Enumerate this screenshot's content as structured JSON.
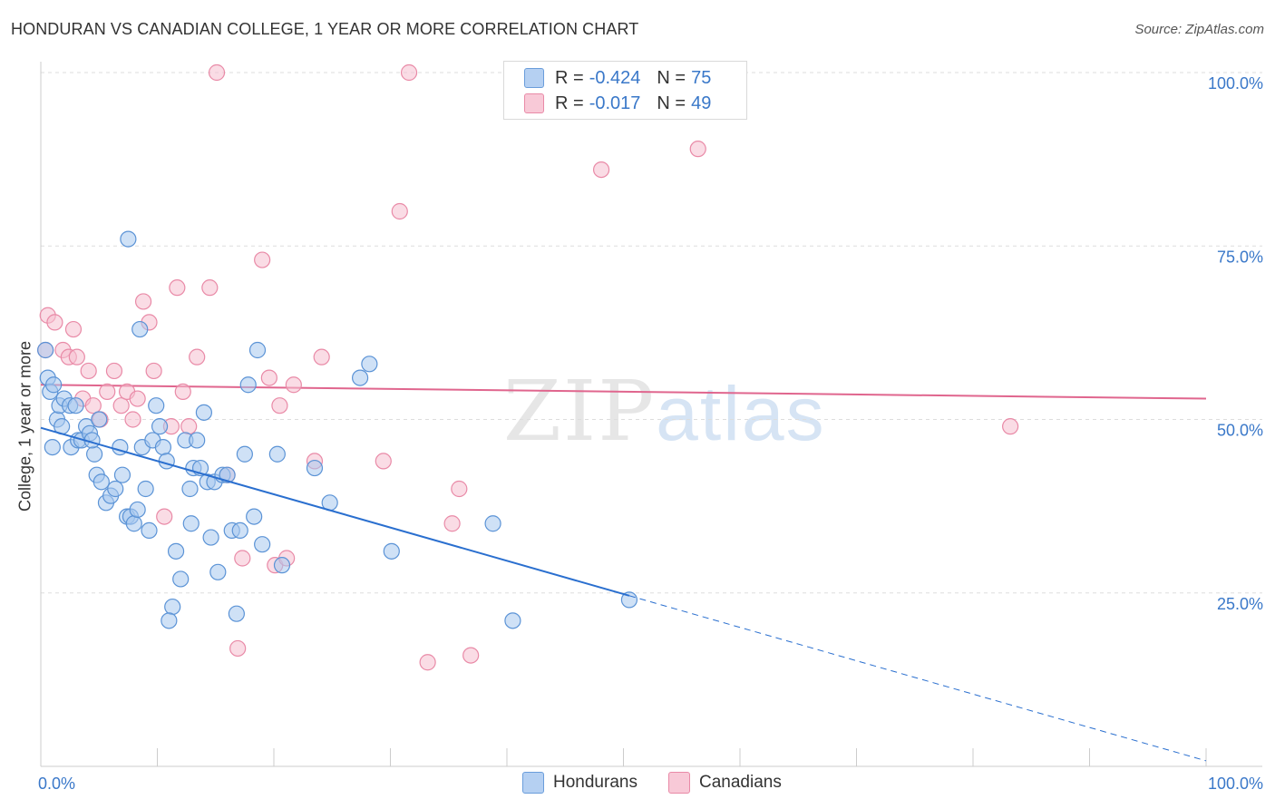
{
  "title": "HONDURAN VS CANADIAN COLLEGE, 1 YEAR OR MORE CORRELATION CHART",
  "source": "Source: ZipAtlas.com",
  "watermark": {
    "zip": "ZIP",
    "atlas": "atlas"
  },
  "colors": {
    "hondurans_fill": "#a8c8ef",
    "hondurans_stroke": "#5b93d6",
    "hondurans_line": "#2a6fcf",
    "canadians_fill": "#f6bfcf",
    "canadians_stroke": "#e98aa7",
    "canadians_line": "#e0668e",
    "grid": "#dddddd",
    "tick_text": "#3a78c9"
  },
  "legend": {
    "hondurans": {
      "r_label": "R =",
      "r_value": "-0.424",
      "n_label": "N =",
      "n_value": "75",
      "name": "Hondurans"
    },
    "canadians": {
      "r_label": "R =",
      "r_value": "-0.017",
      "n_label": "N =",
      "n_value": "49",
      "name": "Canadians"
    }
  },
  "chart_data": {
    "type": "scatter",
    "title": "HONDURAN VS CANADIAN COLLEGE, 1 YEAR OR MORE CORRELATION CHART",
    "xlabel": "",
    "ylabel": "College, 1 year or more",
    "xlim": [
      0,
      100
    ],
    "ylim": [
      0,
      100
    ],
    "x_tick_labels": [
      {
        "value": 0,
        "label": "0.0%"
      },
      {
        "value": 100,
        "label": "100.0%"
      }
    ],
    "y_tick_labels": [
      {
        "value": 100,
        "label": "100.0%"
      },
      {
        "value": 75,
        "label": "75.0%"
      },
      {
        "value": 50,
        "label": "50.0%"
      },
      {
        "value": 25,
        "label": "25.0%"
      }
    ],
    "gridlines_y": [
      100,
      75,
      50,
      25
    ],
    "legend_position": "top-center",
    "series": [
      {
        "name": "Hondurans",
        "color": "#a8c8ef",
        "points": [
          [
            0.6,
            56
          ],
          [
            0.8,
            54
          ],
          [
            1.1,
            55
          ],
          [
            1.4,
            50
          ],
          [
            1.6,
            52
          ],
          [
            2.0,
            53
          ],
          [
            2.5,
            52
          ],
          [
            1.8,
            49
          ],
          [
            2.6,
            46
          ],
          [
            3.2,
            47
          ],
          [
            3.5,
            47
          ],
          [
            3.9,
            49
          ],
          [
            4.2,
            48
          ],
          [
            4.6,
            45
          ],
          [
            5.0,
            50
          ],
          [
            4.4,
            47
          ],
          [
            4.8,
            42
          ],
          [
            5.2,
            41
          ],
          [
            5.6,
            38
          ],
          [
            6.0,
            39
          ],
          [
            6.4,
            40
          ],
          [
            6.8,
            46
          ],
          [
            7.0,
            42
          ],
          [
            7.4,
            36
          ],
          [
            7.7,
            36
          ],
          [
            8.0,
            35
          ],
          [
            8.3,
            37
          ],
          [
            8.7,
            46
          ],
          [
            9.0,
            40
          ],
          [
            9.3,
            34
          ],
          [
            9.6,
            47
          ],
          [
            9.9,
            52
          ],
          [
            10.2,
            49
          ],
          [
            10.5,
            46
          ],
          [
            10.8,
            44
          ],
          [
            11.3,
            23
          ],
          [
            11.0,
            21
          ],
          [
            11.6,
            31
          ],
          [
            12.0,
            27
          ],
          [
            12.4,
            47
          ],
          [
            12.8,
            40
          ],
          [
            13.1,
            43
          ],
          [
            13.4,
            47
          ],
          [
            13.7,
            43
          ],
          [
            14.0,
            51
          ],
          [
            14.3,
            41
          ],
          [
            14.6,
            33
          ],
          [
            14.9,
            41
          ],
          [
            15.2,
            28
          ],
          [
            15.6,
            42
          ],
          [
            16.0,
            42
          ],
          [
            16.4,
            34
          ],
          [
            16.8,
            22
          ],
          [
            17.1,
            34
          ],
          [
            17.5,
            45
          ],
          [
            17.8,
            55
          ],
          [
            18.3,
            36
          ],
          [
            18.6,
            60
          ],
          [
            19.0,
            32
          ],
          [
            20.7,
            29
          ],
          [
            20.3,
            45
          ],
          [
            23.5,
            43
          ],
          [
            24.8,
            38
          ],
          [
            27.4,
            56
          ],
          [
            28.2,
            58
          ],
          [
            30.1,
            31
          ],
          [
            38.8,
            35
          ],
          [
            40.5,
            21
          ],
          [
            50.5,
            24
          ],
          [
            8.5,
            63
          ],
          [
            7.5,
            76
          ],
          [
            3.0,
            52
          ],
          [
            1.0,
            46
          ],
          [
            0.4,
            60
          ],
          [
            12.9,
            35
          ]
        ]
      },
      {
        "name": "Canadians",
        "color": "#f6bfcf",
        "points": [
          [
            0.4,
            60
          ],
          [
            0.6,
            65
          ],
          [
            1.2,
            64
          ],
          [
            1.9,
            60
          ],
          [
            2.4,
            59
          ],
          [
            2.8,
            63
          ],
          [
            3.1,
            59
          ],
          [
            3.6,
            53
          ],
          [
            4.1,
            57
          ],
          [
            4.5,
            52
          ],
          [
            5.1,
            50
          ],
          [
            5.7,
            54
          ],
          [
            6.3,
            57
          ],
          [
            6.9,
            52
          ],
          [
            7.4,
            54
          ],
          [
            7.9,
            50
          ],
          [
            8.3,
            53
          ],
          [
            8.8,
            67
          ],
          [
            9.3,
            64
          ],
          [
            9.7,
            57
          ],
          [
            10.6,
            36
          ],
          [
            11.2,
            49
          ],
          [
            11.7,
            69
          ],
          [
            12.2,
            54
          ],
          [
            12.7,
            49
          ],
          [
            13.4,
            59
          ],
          [
            14.5,
            69
          ],
          [
            16.0,
            42
          ],
          [
            16.9,
            17
          ],
          [
            17.3,
            30
          ],
          [
            19.0,
            73
          ],
          [
            19.6,
            56
          ],
          [
            20.1,
            29
          ],
          [
            20.5,
            52
          ],
          [
            21.1,
            30
          ],
          [
            21.7,
            55
          ],
          [
            23.5,
            44
          ],
          [
            24.1,
            59
          ],
          [
            29.4,
            44
          ],
          [
            30.8,
            80
          ],
          [
            33.2,
            15
          ],
          [
            35.3,
            35
          ],
          [
            35.9,
            40
          ],
          [
            36.9,
            16
          ],
          [
            48.1,
            86
          ],
          [
            56.4,
            89
          ],
          [
            83.2,
            49
          ],
          [
            15.1,
            100
          ],
          [
            31.6,
            100
          ]
        ]
      }
    ],
    "trend_lines": [
      {
        "series": "Hondurans",
        "x": [
          0,
          50.5
        ],
        "y": [
          48.8,
          24.6
        ],
        "style": "solid"
      },
      {
        "series": "Hondurans",
        "x": [
          50.5,
          100
        ],
        "y": [
          24.6,
          0.8
        ],
        "style": "dashed"
      },
      {
        "series": "Canadians",
        "x": [
          0,
          100
        ],
        "y": [
          55.0,
          53.0
        ],
        "style": "solid"
      }
    ]
  }
}
